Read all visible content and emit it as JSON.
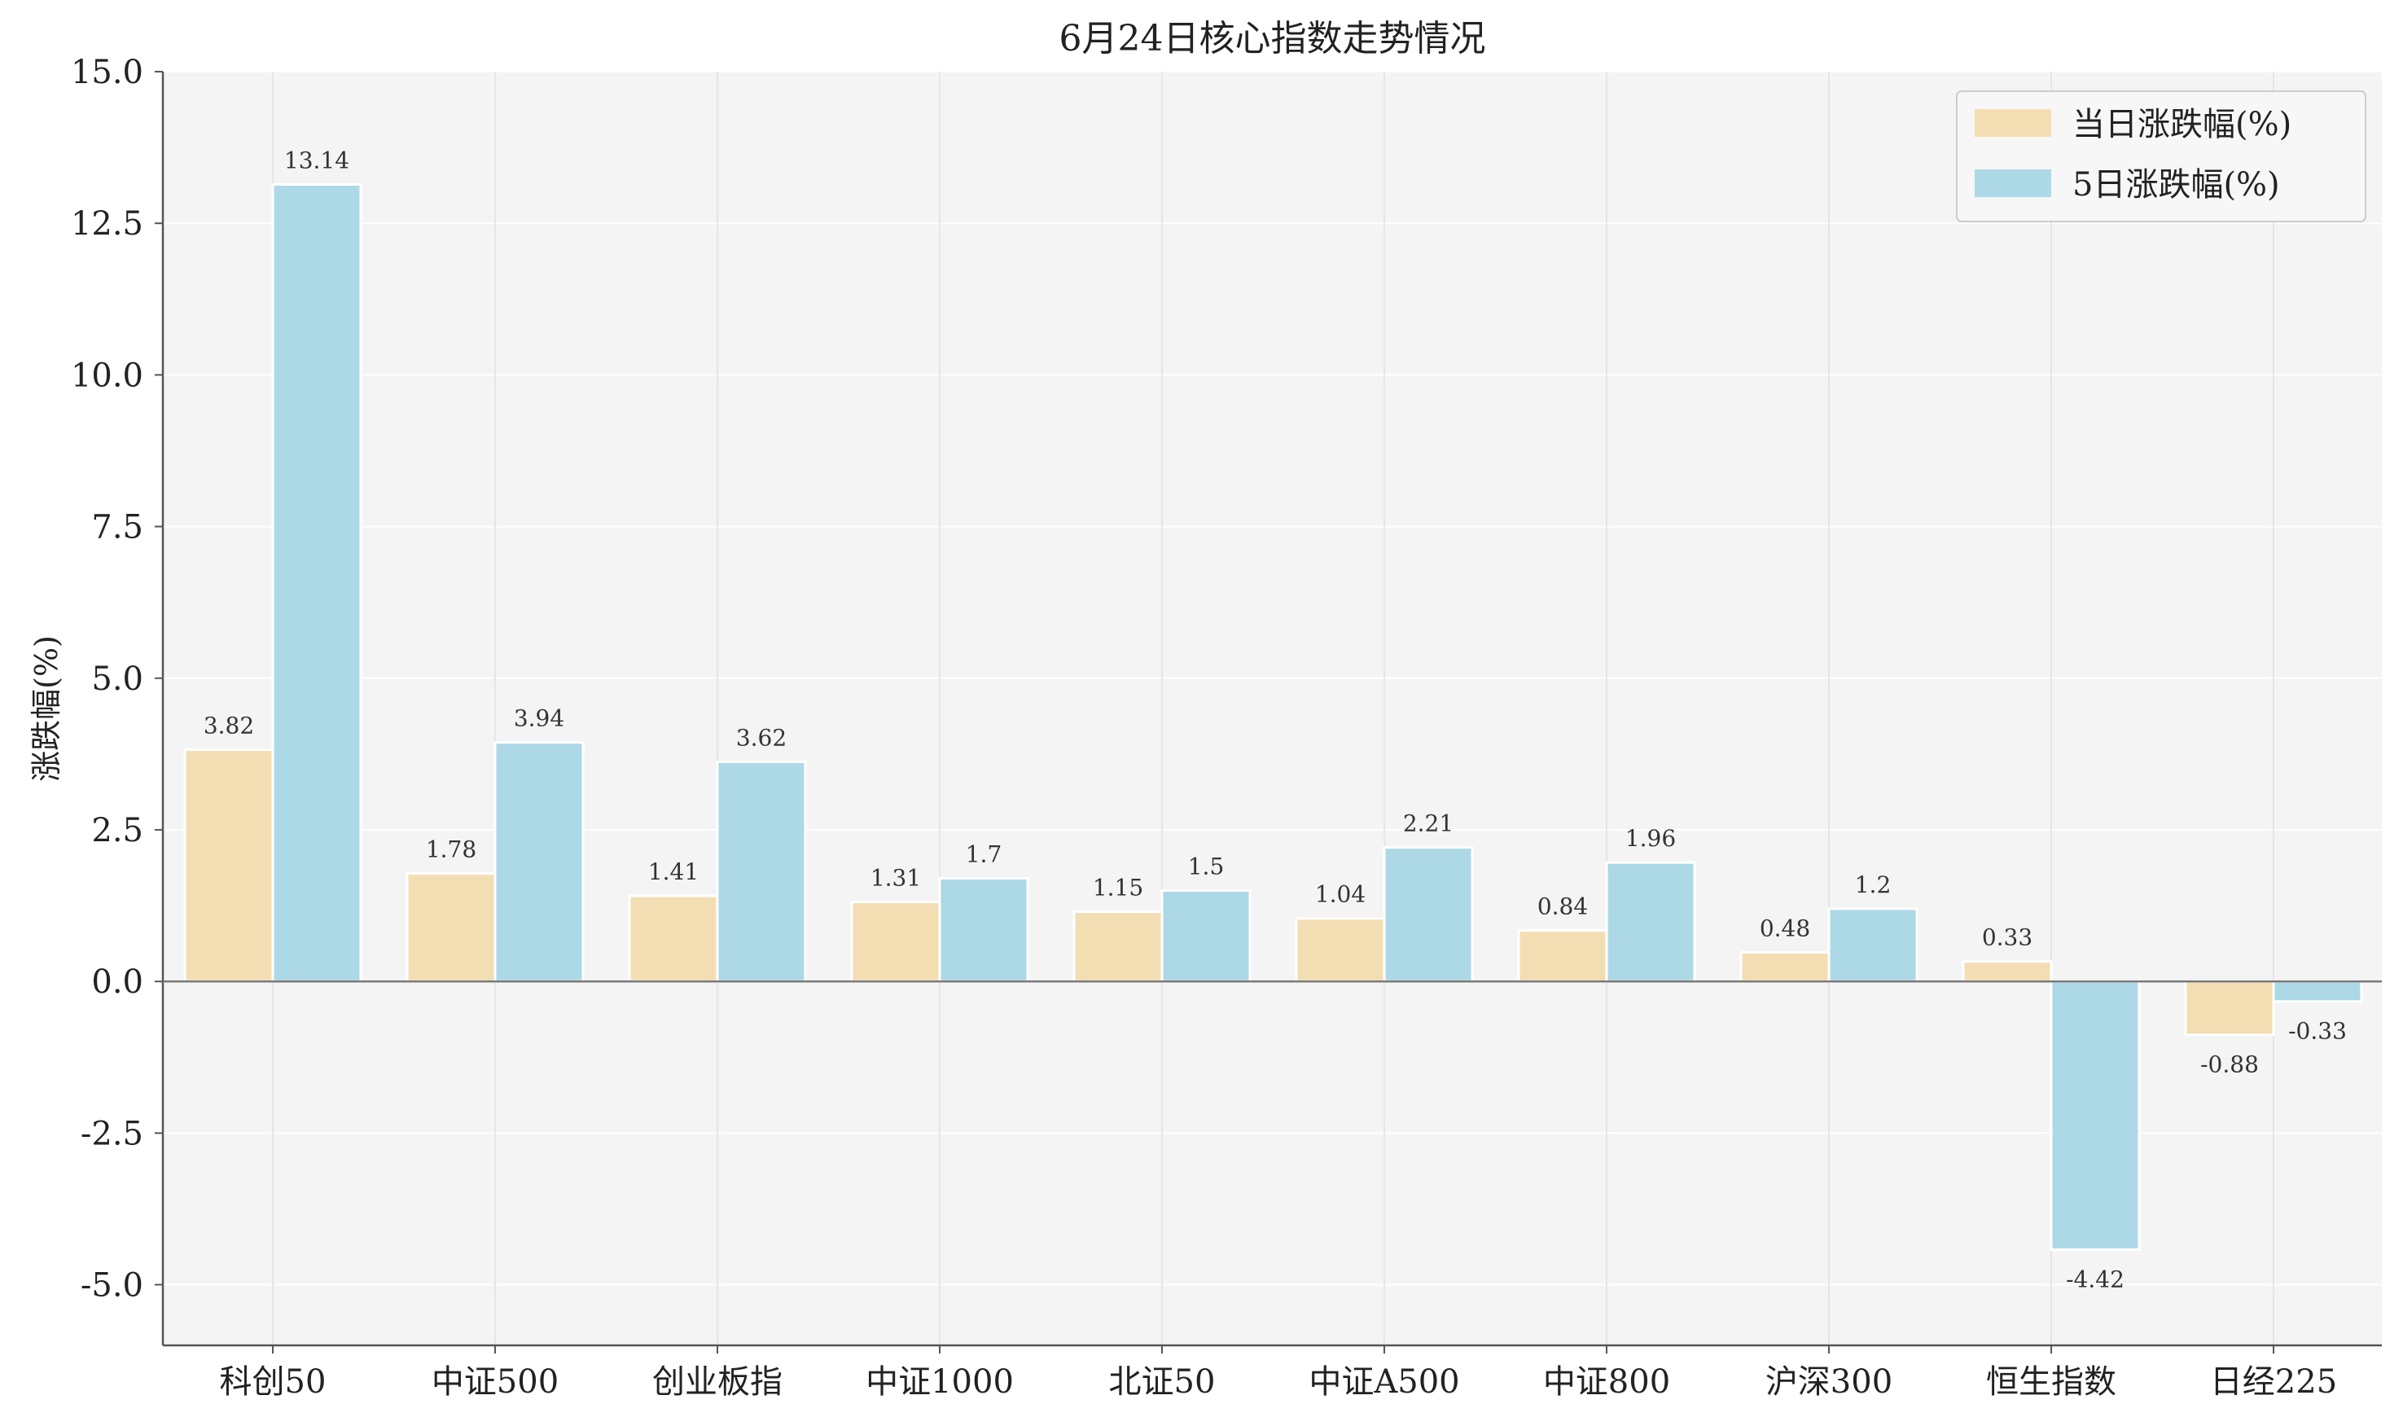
{
  "chart_data": {
    "type": "bar",
    "title": "6月24日核心指数走势情况",
    "xlabel": "",
    "ylabel": "涨跌幅(%)",
    "ylim": [
      -6.0,
      15.0
    ],
    "yticks": [
      15.0,
      12.5,
      10.0,
      7.5,
      5.0,
      2.5,
      0.0,
      -2.5,
      -5.0
    ],
    "ytick_labels": [
      "15.0",
      "12.5",
      "10.0",
      "7.5",
      "5.0",
      "2.5",
      "0.0",
      "-2.5",
      "-5.0"
    ],
    "grid": true,
    "legend_position": "top-right",
    "categories": [
      "科创50",
      "中证500",
      "创业板指",
      "中证1000",
      "北证50",
      "中证A500",
      "中证800",
      "沪深300",
      "恒生指数",
      "日经225"
    ],
    "series": [
      {
        "name": "当日涨跌幅(%)",
        "color": "#f3ddb3",
        "values": [
          3.82,
          1.78,
          1.41,
          1.31,
          1.15,
          1.04,
          0.84,
          0.48,
          0.33,
          -0.88
        ],
        "labels": [
          "3.82",
          "1.78",
          "1.41",
          "1.31",
          "1.15",
          "1.04",
          "0.84",
          "0.48",
          "0.33",
          "-0.88"
        ]
      },
      {
        "name": "5日涨跌幅(%)",
        "color": "#add8e6",
        "values": [
          13.14,
          3.94,
          3.62,
          1.7,
          1.5,
          2.21,
          1.96,
          1.2,
          -4.42,
          -0.33
        ],
        "labels": [
          "13.14",
          "3.94",
          "3.62",
          "1.7",
          "1.5",
          "2.21",
          "1.96",
          "1.2",
          "-4.42",
          "-0.33"
        ]
      }
    ]
  }
}
